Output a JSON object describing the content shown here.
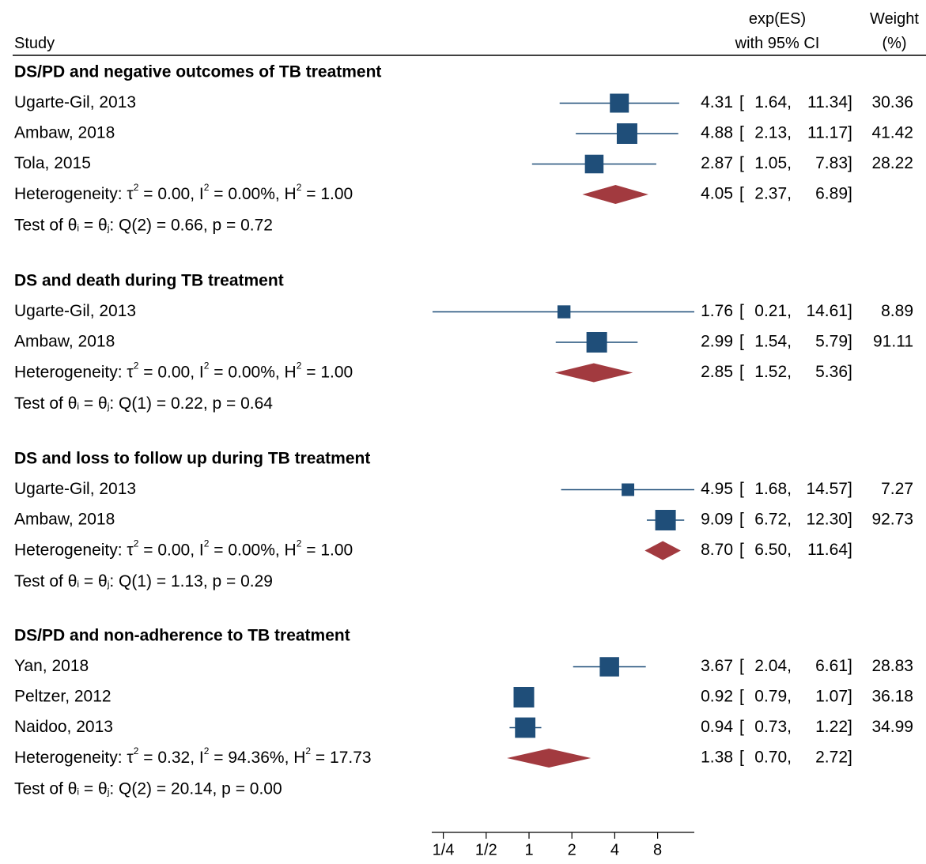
{
  "header": {
    "study": "Study",
    "es_line1": "exp(ES)",
    "es_line2": "with 95% CI",
    "weight_line1": "Weight",
    "weight_line2": "(%)"
  },
  "colors": {
    "study_marker": "#1f4e79",
    "study_line": "#1f4e79",
    "pooled_diamond": "#a23a3f",
    "rule": "#000000",
    "text": "#000000"
  },
  "chart_data": {
    "type": "forest",
    "x_scale": "log2",
    "x_ticks": [
      {
        "value": 0.25,
        "label": "1/4"
      },
      {
        "value": 0.5,
        "label": "1/2"
      },
      {
        "value": 1,
        "label": "1"
      },
      {
        "value": 2,
        "label": "2"
      },
      {
        "value": 4,
        "label": "4"
      },
      {
        "value": 8,
        "label": "8"
      }
    ],
    "groups": [
      {
        "title": "DS/PD and negative outcomes of TB treatment",
        "studies": [
          {
            "name": "Ugarte-Gil, 2013",
            "es": 4.31,
            "lo": 1.64,
            "hi": 11.34,
            "es_text": "4.31",
            "lo_text": "1.64",
            "hi_text": "11.34",
            "weight": "30.36"
          },
          {
            "name": "Ambaw, 2018",
            "es": 4.88,
            "lo": 2.13,
            "hi": 11.17,
            "es_text": "4.88",
            "lo_text": "2.13",
            "hi_text": "11.17",
            "weight": "41.42"
          },
          {
            "name": "Tola, 2015",
            "es": 2.87,
            "lo": 1.05,
            "hi": 7.83,
            "es_text": "2.87",
            "lo_text": "1.05",
            "hi_text": "7.83",
            "weight": "28.22"
          }
        ],
        "pooled": {
          "es": 4.05,
          "lo": 2.37,
          "hi": 6.89,
          "es_text": "4.05",
          "lo_text": "2.37",
          "hi_text": "6.89"
        },
        "heterogeneity": {
          "tau2": "0.00",
          "i2": "0.00%",
          "h2": "1.00"
        },
        "test": {
          "df": "2",
          "q": "0.66",
          "p": "0.72"
        }
      },
      {
        "title": "DS and death during TB treatment",
        "studies": [
          {
            "name": "Ugarte-Gil, 2013",
            "es": 1.76,
            "lo": 0.21,
            "hi": 14.61,
            "es_text": "1.76",
            "lo_text": "0.21",
            "hi_text": "14.61",
            "weight": "8.89"
          },
          {
            "name": "Ambaw, 2018",
            "es": 2.99,
            "lo": 1.54,
            "hi": 5.79,
            "es_text": "2.99",
            "lo_text": "1.54",
            "hi_text": "5.79",
            "weight": "91.11"
          }
        ],
        "pooled": {
          "es": 2.85,
          "lo": 1.52,
          "hi": 5.36,
          "es_text": "2.85",
          "lo_text": "1.52",
          "hi_text": "5.36"
        },
        "heterogeneity": {
          "tau2": "0.00",
          "i2": "0.00%",
          "h2": "1.00"
        },
        "test": {
          "df": "1",
          "q": "0.22",
          "p": "0.64"
        }
      },
      {
        "title": "DS and loss to follow up during TB treatment",
        "studies": [
          {
            "name": "Ugarte-Gil, 2013",
            "es": 4.95,
            "lo": 1.68,
            "hi": 14.57,
            "es_text": "4.95",
            "lo_text": "1.68",
            "hi_text": "14.57",
            "weight": "7.27"
          },
          {
            "name": "Ambaw, 2018",
            "es": 9.09,
            "lo": 6.72,
            "hi": 12.3,
            "es_text": "9.09",
            "lo_text": "6.72",
            "hi_text": "12.30",
            "weight": "92.73"
          }
        ],
        "pooled": {
          "es": 8.7,
          "lo": 6.5,
          "hi": 11.64,
          "es_text": "8.70",
          "lo_text": "6.50",
          "hi_text": "11.64"
        },
        "heterogeneity": {
          "tau2": "0.00",
          "i2": "0.00%",
          "h2": "1.00"
        },
        "test": {
          "df": "1",
          "q": "1.13",
          "p": "0.29"
        }
      },
      {
        "title": "DS/PD and non-adherence to TB treatment",
        "studies": [
          {
            "name": "Yan, 2018",
            "es": 3.67,
            "lo": 2.04,
            "hi": 6.61,
            "es_text": "3.67",
            "lo_text": "2.04",
            "hi_text": "6.61",
            "weight": "28.83"
          },
          {
            "name": "Peltzer, 2012",
            "es": 0.92,
            "lo": 0.79,
            "hi": 1.07,
            "es_text": "0.92",
            "lo_text": "0.79",
            "hi_text": "1.07",
            "weight": "36.18"
          },
          {
            "name": "Naidoo, 2013",
            "es": 0.94,
            "lo": 0.73,
            "hi": 1.22,
            "es_text": "0.94",
            "lo_text": "0.73",
            "hi_text": "1.22",
            "weight": "34.99"
          }
        ],
        "pooled": {
          "es": 1.38,
          "lo": 0.7,
          "hi": 2.72,
          "es_text": "1.38",
          "lo_text": "0.70",
          "hi_text": "2.72"
        },
        "heterogeneity": {
          "tau2": "0.32",
          "i2": "94.36%",
          "h2": "17.73"
        },
        "test": {
          "df": "2",
          "q": "20.14",
          "p": "0.00"
        }
      }
    ]
  }
}
